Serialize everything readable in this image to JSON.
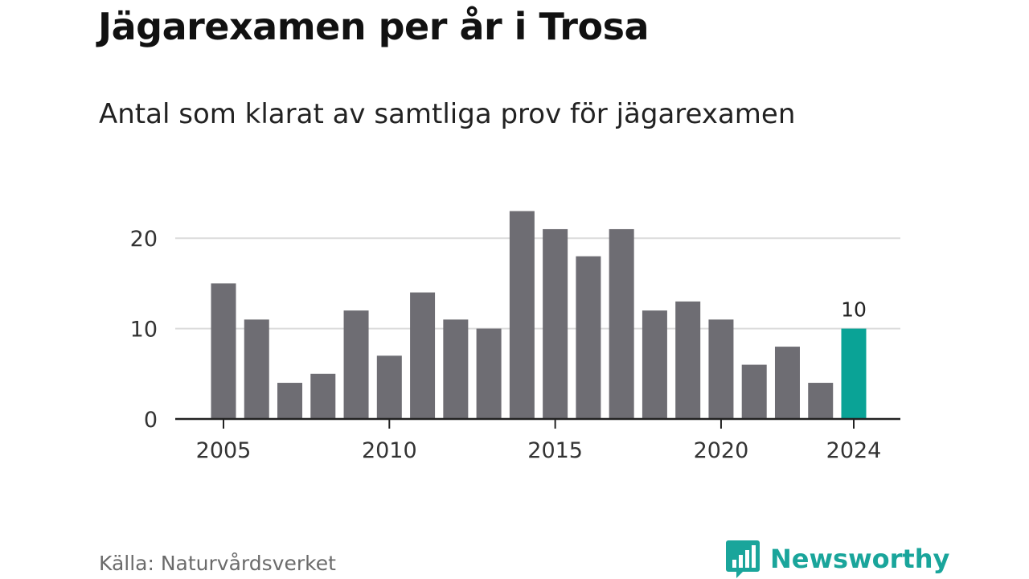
{
  "header": {
    "title": "Jägarexamen per år i Trosa",
    "subtitle": "Antal som klarat av samtliga prov för jägarexamen"
  },
  "footer": {
    "source": "Källa: Naturvårdsverket",
    "brand": "Newsworthy",
    "brand_icon": "bar-chart-speech-bubble-icon"
  },
  "colors": {
    "bar": "#6e6d73",
    "highlight": "#0aa396",
    "grid": "#dcdcdc",
    "axis": "#222222",
    "brand": "#1aa59b"
  },
  "chart_data": {
    "type": "bar",
    "title": "Jägarexamen per år i Trosa",
    "subtitle": "Antal som klarat av samtliga prov för jägarexamen",
    "x": [
      2005,
      2006,
      2007,
      2008,
      2009,
      2010,
      2011,
      2012,
      2013,
      2014,
      2015,
      2016,
      2017,
      2018,
      2019,
      2020,
      2021,
      2022,
      2023,
      2024
    ],
    "values": [
      15,
      11,
      4,
      5,
      12,
      7,
      14,
      11,
      10,
      23,
      21,
      18,
      21,
      12,
      13,
      11,
      6,
      8,
      4,
      10
    ],
    "x_ticks": [
      "2005",
      "2010",
      "2015",
      "2020",
      "2024"
    ],
    "y_ticks": [
      "0",
      "10",
      "20"
    ],
    "ylim": [
      0,
      25
    ],
    "grid": true,
    "highlight_year": 2024,
    "highlight_label": "10",
    "xlabel": "",
    "ylabel": ""
  }
}
